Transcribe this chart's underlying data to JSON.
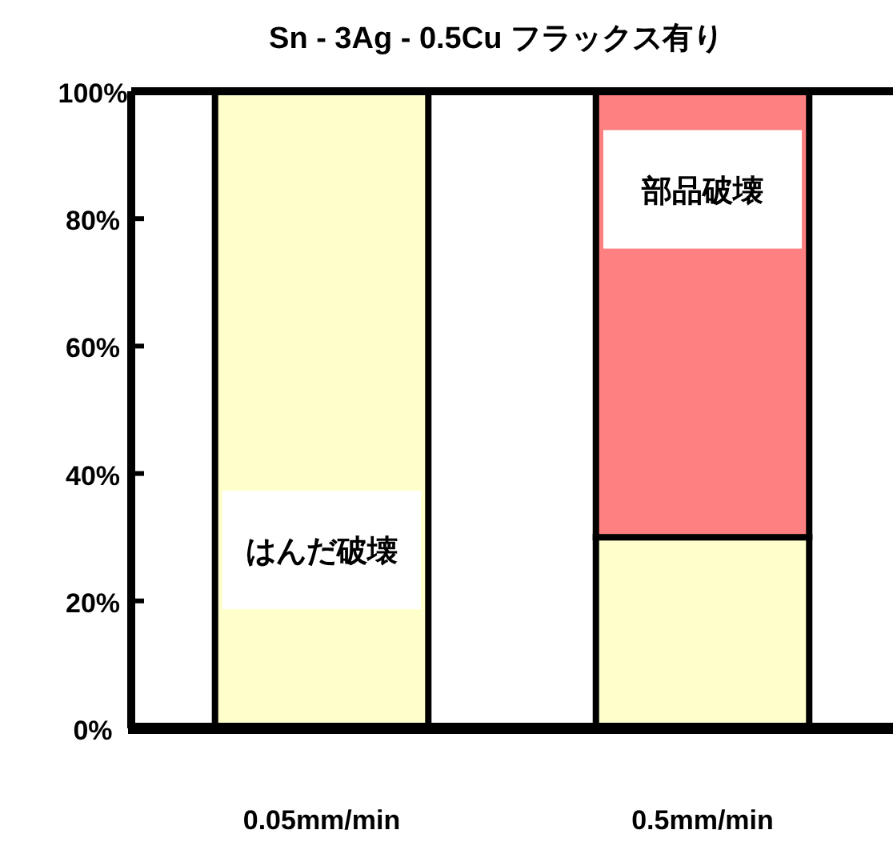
{
  "chart_data": {
    "type": "bar",
    "title": "Sn - 3Ag - 0.5Cu フラックス有り",
    "stacked": true,
    "categories": [
      "0.05mm/min",
      "0.5mm/min"
    ],
    "series": [
      {
        "name": "はんだ破壊",
        "color": "#ffffcc",
        "values": [
          100,
          30
        ]
      },
      {
        "name": "部品破壊",
        "color": "#ff8080",
        "values": [
          0,
          70
        ]
      }
    ],
    "ylim": [
      0,
      100
    ],
    "yticks": [
      {
        "value": 0,
        "label": "0%"
      },
      {
        "value": 20,
        "label": "20%"
      },
      {
        "value": 40,
        "label": "40%"
      },
      {
        "value": 60,
        "label": "60%"
      },
      {
        "value": 80,
        "label": "80%"
      },
      {
        "value": 100,
        "label": "100%"
      }
    ],
    "legend": false,
    "grid": false
  }
}
